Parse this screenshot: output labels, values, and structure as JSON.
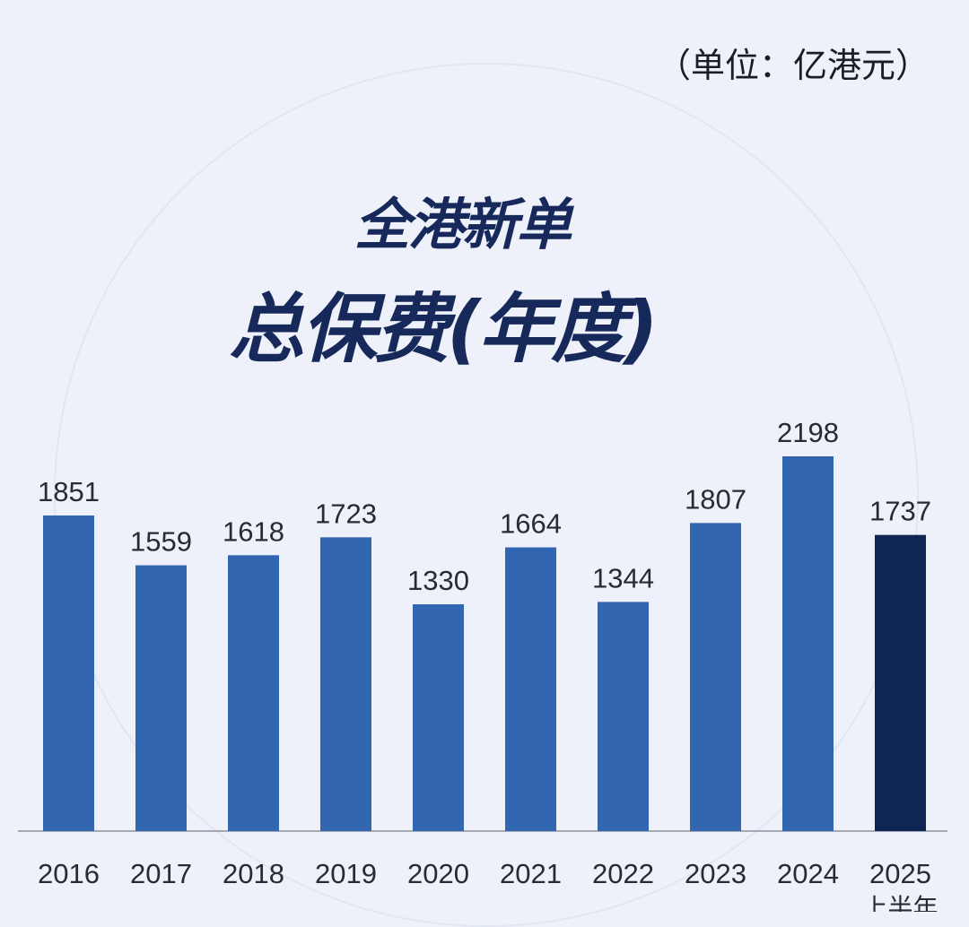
{
  "chart_data": {
    "type": "bar",
    "title": "全港新单",
    "subtitle": "总保费(年度)",
    "unit_label": "（单位：亿港元）",
    "categories": [
      "2016",
      "2017",
      "2018",
      "2019",
      "2020",
      "2021",
      "2022",
      "2023",
      "2024",
      "2025"
    ],
    "category_sublabels": [
      "",
      "",
      "",
      "",
      "",
      "",
      "",
      "",
      "",
      "上半年"
    ],
    "values": [
      1851,
      1559,
      1618,
      1723,
      1330,
      1664,
      1344,
      1807,
      2198,
      1737
    ],
    "ylim": [
      0,
      2200
    ],
    "grid": false,
    "xlabel": "",
    "ylabel": "",
    "colors": {
      "bar": "#3366b0",
      "highlight": "#0f2553",
      "text": "#2a2a30"
    }
  }
}
